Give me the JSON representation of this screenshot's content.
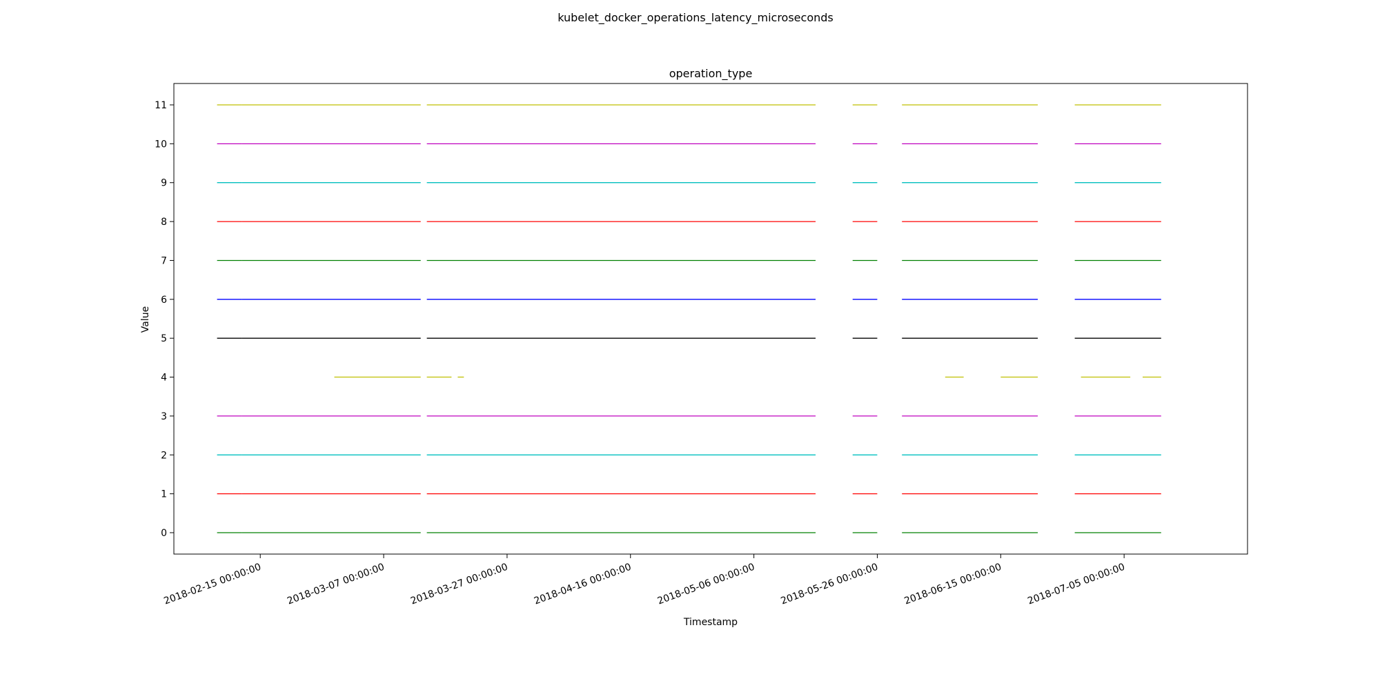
{
  "figure": {
    "suptitle": "kubelet_docker_operations_latency_microseconds"
  },
  "chart_data": {
    "type": "line",
    "title": "operation_type",
    "xlabel": "Timestamp",
    "ylabel": "Value",
    "xlim": [
      "2018-02-01 00:00:00",
      "2018-07-25 00:00:00"
    ],
    "ylim": [
      -0.55,
      11.55
    ],
    "x_ticks": [
      "2018-02-15 00:00:00",
      "2018-03-07 00:00:00",
      "2018-03-27 00:00:00",
      "2018-04-16 00:00:00",
      "2018-05-06 00:00:00",
      "2018-05-26 00:00:00",
      "2018-06-15 00:00:00",
      "2018-07-05 00:00:00"
    ],
    "y_ticks": [
      0,
      1,
      2,
      3,
      4,
      5,
      6,
      7,
      8,
      9,
      10,
      11
    ],
    "grid": false,
    "series": [
      {
        "color": "#008000",
        "y": 0,
        "segments": [
          [
            "2018-02-08",
            "2018-02-12"
          ],
          [
            "2018-02-12",
            "2018-03-13"
          ],
          [
            "2018-03-14",
            "2018-05-16"
          ],
          [
            "2018-05-22",
            "2018-05-26"
          ],
          [
            "2018-05-30",
            "2018-06-21"
          ],
          [
            "2018-06-27",
            "2018-07-11"
          ]
        ]
      },
      {
        "color": "#ff0000",
        "y": 1,
        "segments": [
          [
            "2018-02-08",
            "2018-02-12"
          ],
          [
            "2018-02-12",
            "2018-03-13"
          ],
          [
            "2018-03-14",
            "2018-05-16"
          ],
          [
            "2018-05-22",
            "2018-05-26"
          ],
          [
            "2018-05-30",
            "2018-06-21"
          ],
          [
            "2018-06-27",
            "2018-07-11"
          ]
        ]
      },
      {
        "color": "#00bfbf",
        "y": 2,
        "segments": [
          [
            "2018-02-08",
            "2018-02-12"
          ],
          [
            "2018-02-12",
            "2018-03-13"
          ],
          [
            "2018-03-14",
            "2018-05-16"
          ],
          [
            "2018-05-22",
            "2018-05-26"
          ],
          [
            "2018-05-30",
            "2018-06-21"
          ],
          [
            "2018-06-27",
            "2018-07-11"
          ]
        ]
      },
      {
        "color": "#bf00bf",
        "y": 3,
        "segments": [
          [
            "2018-02-08",
            "2018-02-12"
          ],
          [
            "2018-02-12",
            "2018-03-13"
          ],
          [
            "2018-03-14",
            "2018-05-16"
          ],
          [
            "2018-05-22",
            "2018-05-26"
          ],
          [
            "2018-05-30",
            "2018-06-21"
          ],
          [
            "2018-06-27",
            "2018-07-11"
          ]
        ]
      },
      {
        "color": "#bfbf00",
        "y": 4,
        "segments": [
          [
            "2018-02-27",
            "2018-03-13"
          ],
          [
            "2018-03-14",
            "2018-03-18"
          ],
          [
            "2018-03-19",
            "2018-03-20"
          ],
          [
            "2018-06-06",
            "2018-06-09"
          ],
          [
            "2018-06-15",
            "2018-06-21"
          ],
          [
            "2018-06-28",
            "2018-07-06"
          ],
          [
            "2018-07-08",
            "2018-07-11"
          ]
        ]
      },
      {
        "color": "#000000",
        "y": 5,
        "segments": [
          [
            "2018-02-08",
            "2018-02-12"
          ],
          [
            "2018-02-12",
            "2018-03-13"
          ],
          [
            "2018-03-14",
            "2018-05-16"
          ],
          [
            "2018-05-22",
            "2018-05-26"
          ],
          [
            "2018-05-30",
            "2018-06-21"
          ],
          [
            "2018-06-27",
            "2018-07-11"
          ]
        ]
      },
      {
        "color": "#0000ff",
        "y": 6,
        "segments": [
          [
            "2018-02-08",
            "2018-02-12"
          ],
          [
            "2018-02-12",
            "2018-03-13"
          ],
          [
            "2018-03-14",
            "2018-05-16"
          ],
          [
            "2018-05-22",
            "2018-05-26"
          ],
          [
            "2018-05-30",
            "2018-06-21"
          ],
          [
            "2018-06-27",
            "2018-07-11"
          ]
        ]
      },
      {
        "color": "#008000",
        "y": 7,
        "segments": [
          [
            "2018-02-08",
            "2018-02-12"
          ],
          [
            "2018-02-12",
            "2018-03-13"
          ],
          [
            "2018-03-14",
            "2018-05-16"
          ],
          [
            "2018-05-22",
            "2018-05-26"
          ],
          [
            "2018-05-30",
            "2018-06-21"
          ],
          [
            "2018-06-27",
            "2018-07-11"
          ]
        ]
      },
      {
        "color": "#ff0000",
        "y": 8,
        "segments": [
          [
            "2018-02-08",
            "2018-02-12"
          ],
          [
            "2018-02-12",
            "2018-03-13"
          ],
          [
            "2018-03-14",
            "2018-05-16"
          ],
          [
            "2018-05-22",
            "2018-05-26"
          ],
          [
            "2018-05-30",
            "2018-06-21"
          ],
          [
            "2018-06-27",
            "2018-07-11"
          ]
        ]
      },
      {
        "color": "#00bfbf",
        "y": 9,
        "segments": [
          [
            "2018-02-08",
            "2018-02-12"
          ],
          [
            "2018-02-12",
            "2018-03-13"
          ],
          [
            "2018-03-14",
            "2018-05-16"
          ],
          [
            "2018-05-22",
            "2018-05-26"
          ],
          [
            "2018-05-30",
            "2018-06-21"
          ],
          [
            "2018-06-27",
            "2018-07-11"
          ]
        ]
      },
      {
        "color": "#bf00bf",
        "y": 10,
        "segments": [
          [
            "2018-02-08",
            "2018-02-12"
          ],
          [
            "2018-02-12",
            "2018-03-13"
          ],
          [
            "2018-03-14",
            "2018-05-16"
          ],
          [
            "2018-05-22",
            "2018-05-26"
          ],
          [
            "2018-05-30",
            "2018-06-21"
          ],
          [
            "2018-06-27",
            "2018-07-11"
          ]
        ]
      },
      {
        "color": "#bfbf00",
        "y": 11,
        "segments": [
          [
            "2018-02-08",
            "2018-02-12"
          ],
          [
            "2018-02-12",
            "2018-03-13"
          ],
          [
            "2018-03-14",
            "2018-05-16"
          ],
          [
            "2018-05-22",
            "2018-05-26"
          ],
          [
            "2018-05-30",
            "2018-06-21"
          ],
          [
            "2018-06-27",
            "2018-07-11"
          ]
        ]
      }
    ]
  }
}
